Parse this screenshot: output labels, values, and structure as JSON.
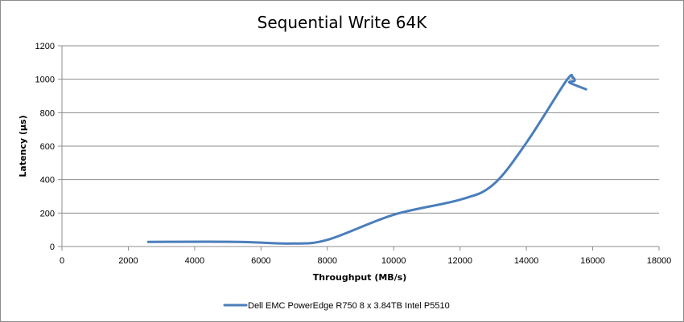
{
  "chart_data": {
    "type": "line",
    "title": "Sequential Write 64K",
    "xlabel": "Throughput (MB/s)",
    "ylabel": "Latency (µs)",
    "xlim": [
      0,
      18000
    ],
    "ylim": [
      0,
      1200
    ],
    "x_ticks": [
      "0",
      "2000",
      "4000",
      "6000",
      "8000",
      "10000",
      "12000",
      "14000",
      "16000",
      "18000"
    ],
    "y_ticks": [
      "0",
      "200",
      "400",
      "600",
      "800",
      "1000",
      "1200"
    ],
    "grid": "horizontal",
    "legend_position": "bottom",
    "series": [
      {
        "name": "Dell EMC PowerEdge R750 8 x 3.84TB Intel P5510",
        "color": "#4a7ebb",
        "x": [
          2600,
          5300,
          6900,
          8000,
          10000,
          12000,
          13000,
          14000,
          15200,
          15400,
          15450,
          15300,
          15800
        ],
        "y": [
          28,
          28,
          18,
          40,
          190,
          280,
          370,
          620,
          990,
          1010,
          990,
          980,
          940
        ]
      }
    ]
  }
}
